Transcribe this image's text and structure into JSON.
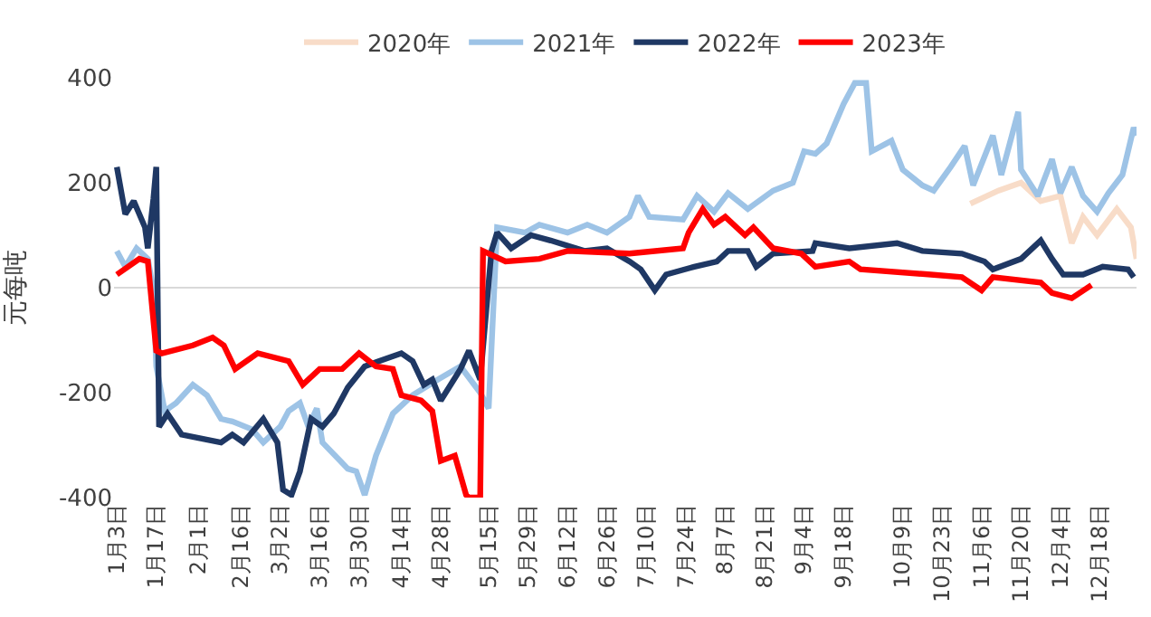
{
  "chart_data": {
    "type": "line",
    "ylabel": "元每吨",
    "legend": "top",
    "grid": false,
    "marker": "none",
    "line_style": "solid",
    "xlim": [
      "--01-02",
      "--12-31"
    ],
    "ylim": [
      -400,
      400
    ],
    "yticks": [
      -400,
      -200,
      0,
      200,
      400
    ],
    "xticks": [
      {
        "value": "--01-03",
        "label": "1月3日"
      },
      {
        "value": "--01-17",
        "label": "1月17日"
      },
      {
        "value": "--02-01",
        "label": "2月1日"
      },
      {
        "value": "--02-16",
        "label": "2月16日"
      },
      {
        "value": "--03-02",
        "label": "3月2日"
      },
      {
        "value": "--03-16",
        "label": "3月16日"
      },
      {
        "value": "--03-30",
        "label": "3月30日"
      },
      {
        "value": "--04-14",
        "label": "4月14日"
      },
      {
        "value": "--04-28",
        "label": "4月28日"
      },
      {
        "value": "--05-15",
        "label": "5月15日"
      },
      {
        "value": "--05-29",
        "label": "5月29日"
      },
      {
        "value": "--06-12",
        "label": "6月12日"
      },
      {
        "value": "--06-26",
        "label": "6月26日"
      },
      {
        "value": "--07-10",
        "label": "7月10日"
      },
      {
        "value": "--07-24",
        "label": "7月24日"
      },
      {
        "value": "--08-07",
        "label": "8月7日"
      },
      {
        "value": "--08-21",
        "label": "8月21日"
      },
      {
        "value": "--09-04",
        "label": "9月4日"
      },
      {
        "value": "--09-18",
        "label": "9月18日"
      },
      {
        "value": "--10-09",
        "label": "10月9日"
      },
      {
        "value": "--10-23",
        "label": "10月23日"
      },
      {
        "value": "--11-06",
        "label": "11月6日"
      },
      {
        "value": "--11-20",
        "label": "11月20日"
      },
      {
        "value": "--12-04",
        "label": "12月4日"
      },
      {
        "value": "--12-18",
        "label": "12月18日"
      }
    ],
    "ref_lines": [
      {
        "axis": "y",
        "value": 0,
        "color": "#d9d9d9"
      }
    ],
    "series": [
      {
        "name": "2020年",
        "color": "#f8dcc8",
        "x": [
          "--11-02",
          "--11-12",
          "--11-20",
          "--11-27",
          "--12-04",
          "--12-08",
          "--12-12",
          "--12-17",
          "--12-24",
          "--12-29",
          "--12-31"
        ],
        "values": [
          160,
          185,
          200,
          165,
          175,
          85,
          135,
          100,
          150,
          115,
          55
        ]
      },
      {
        "name": "2021年",
        "color": "#9dc3e6",
        "x": [
          "--01-03",
          "--01-06",
          "--01-10",
          "--01-14",
          "--01-16",
          "--01-17",
          "--01-20",
          "--01-24",
          "--01-30",
          "--02-04",
          "--02-09",
          "--02-13",
          "--02-20",
          "--02-24",
          "--03-02",
          "--03-05",
          "--03-09",
          "--03-12",
          "--03-15",
          "--03-17",
          "--03-26",
          "--03-29",
          "--04-01",
          "--04-05",
          "--04-11",
          "--04-18",
          "--04-27",
          "--05-05",
          "--05-12",
          "--05-15",
          "--05-18",
          "--05-28",
          "--06-02",
          "--06-12",
          "--06-19",
          "--06-26",
          "--07-04",
          "--07-07",
          "--07-11",
          "--07-23",
          "--07-28",
          "--08-03",
          "--08-08",
          "--08-15",
          "--08-24",
          "--08-31",
          "--09-04",
          "--09-08",
          "--09-12",
          "--09-18",
          "--09-22",
          "--09-26",
          "--09-28",
          "--10-05",
          "--10-09",
          "--10-16",
          "--10-20",
          "--10-26",
          "--10-31",
          "--11-03",
          "--11-10",
          "--11-13",
          "--11-19",
          "--11-20",
          "--11-26",
          "--12-01",
          "--12-04",
          "--12-08",
          "--12-12",
          "--12-17",
          "--12-21",
          "--12-26",
          "--12-30",
          "--12-31"
        ],
        "values": [
          70,
          40,
          75,
          55,
          -5,
          -150,
          -235,
          -220,
          -185,
          -205,
          -250,
          -255,
          -270,
          -295,
          -265,
          -235,
          -220,
          -265,
          -230,
          -295,
          -345,
          -350,
          -395,
          -320,
          -240,
          -205,
          -175,
          -150,
          -200,
          -230,
          115,
          105,
          120,
          105,
          120,
          105,
          135,
          175,
          135,
          130,
          175,
          145,
          180,
          150,
          185,
          200,
          260,
          255,
          275,
          350,
          390,
          390,
          260,
          280,
          225,
          195,
          185,
          230,
          270,
          195,
          290,
          215,
          335,
          225,
          175,
          245,
          180,
          230,
          175,
          145,
          180,
          215,
          305,
          290
        ]
      },
      {
        "name": "2022年",
        "color": "#1f3864",
        "x": [
          "--01-03",
          "--01-06",
          "--01-09",
          "--01-13",
          "--01-14",
          "--01-16",
          "--01-17",
          "--01-18",
          "--01-21",
          "--01-26",
          "--02-09",
          "--02-13",
          "--02-17",
          "--02-24",
          "--03-01",
          "--03-03",
          "--03-06",
          "--03-09",
          "--03-13",
          "--03-17",
          "--03-21",
          "--03-26",
          "--04-01",
          "--04-06",
          "--04-14",
          "--04-18",
          "--04-22",
          "--04-25",
          "--04-28",
          "--05-05",
          "--05-08",
          "--05-12",
          "--05-16",
          "--05-18",
          "--05-23",
          "--05-30",
          "--06-06",
          "--06-18",
          "--06-26",
          "--07-04",
          "--07-08",
          "--07-13",
          "--07-17",
          "--07-27",
          "--08-04",
          "--08-08",
          "--08-15",
          "--08-18",
          "--08-24",
          "--09-07",
          "--09-08",
          "--09-20",
          "--10-07",
          "--10-16",
          "--10-30",
          "--11-07",
          "--11-10",
          "--11-20",
          "--11-27",
          "--12-01",
          "--12-05",
          "--12-12",
          "--12-19",
          "--12-28",
          "--12-30"
        ],
        "values": [
          230,
          140,
          165,
          115,
          75,
          170,
          230,
          -265,
          -240,
          -280,
          -295,
          -280,
          -295,
          -250,
          -295,
          -385,
          -395,
          -350,
          -250,
          -265,
          -240,
          -190,
          -150,
          -140,
          -125,
          -140,
          -185,
          -175,
          -215,
          -155,
          -120,
          -175,
          70,
          105,
          75,
          100,
          90,
          70,
          75,
          50,
          35,
          -5,
          25,
          40,
          50,
          70,
          70,
          40,
          65,
          70,
          85,
          75,
          85,
          70,
          65,
          50,
          35,
          55,
          90,
          55,
          25,
          25,
          40,
          35,
          20
        ]
      },
      {
        "name": "2023年",
        "color": "#ff0000",
        "x": [
          "--01-03",
          "--01-11",
          "--01-14",
          "--01-17",
          "--01-19",
          "--01-30",
          "--02-06",
          "--02-10",
          "--02-14",
          "--02-22",
          "--03-05",
          "--03-10",
          "--03-16",
          "--03-24",
          "--03-30",
          "--04-05",
          "--04-11",
          "--04-14",
          "--04-21",
          "--04-25",
          "--04-28",
          "--05-03",
          "--05-07",
          "--05-08",
          "--05-12",
          "--05-13",
          "--05-21",
          "--06-02",
          "--06-12",
          "--07-04",
          "--07-23",
          "--07-25",
          "--07-30",
          "--08-03",
          "--08-07",
          "--08-14",
          "--08-17",
          "--08-24",
          "--09-03",
          "--09-08",
          "--09-20",
          "--09-24",
          "--10-19",
          "--10-30",
          "--11-06",
          "--11-10",
          "--11-27",
          "--12-01",
          "--12-08",
          "--12-15"
        ],
        "values": [
          25,
          55,
          50,
          -120,
          -125,
          -110,
          -95,
          -110,
          -155,
          -125,
          -140,
          -185,
          -155,
          -155,
          -125,
          -150,
          -155,
          -205,
          -215,
          -235,
          -330,
          -320,
          -395,
          -400,
          -400,
          70,
          50,
          55,
          70,
          65,
          75,
          105,
          150,
          120,
          135,
          100,
          115,
          75,
          65,
          40,
          50,
          35,
          25,
          20,
          -5,
          20,
          10,
          -10,
          -20,
          5
        ]
      }
    ]
  }
}
